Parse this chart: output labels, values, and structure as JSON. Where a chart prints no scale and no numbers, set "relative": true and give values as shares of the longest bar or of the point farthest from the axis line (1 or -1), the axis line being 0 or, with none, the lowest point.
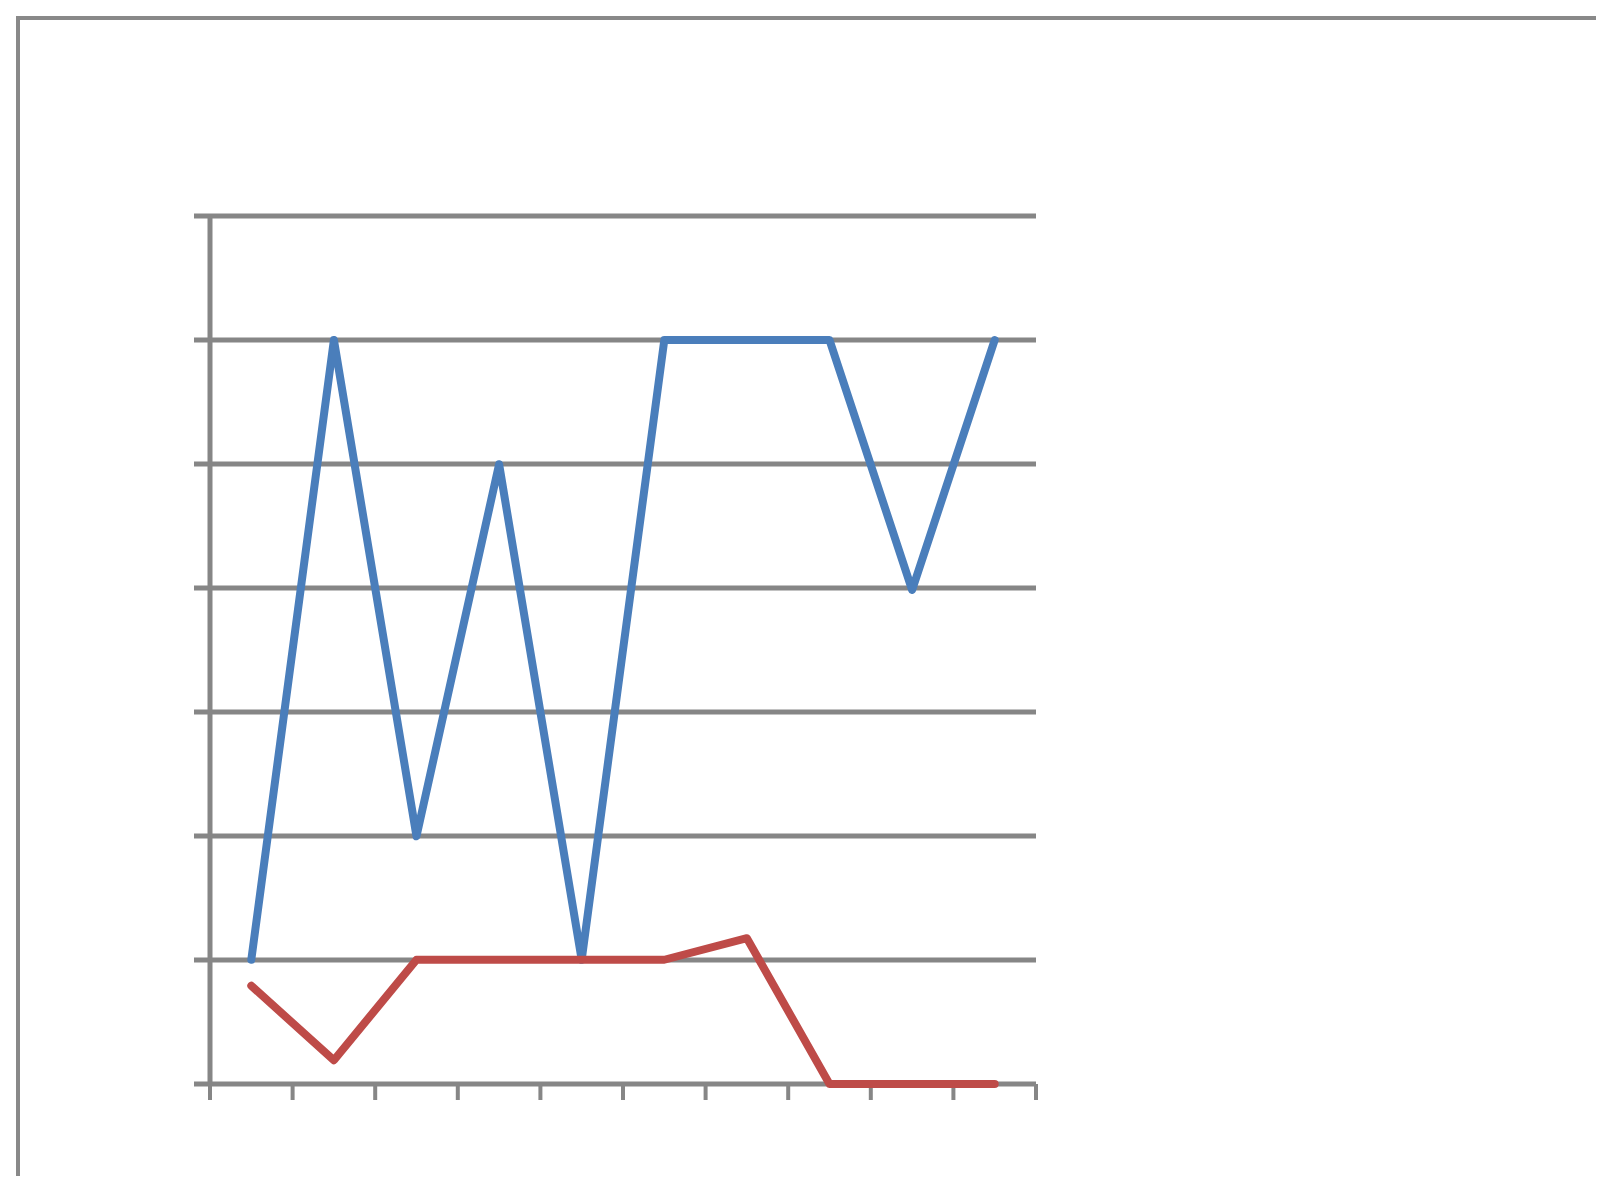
{
  "chart_data": {
    "type": "line",
    "relative": true,
    "grid": "y",
    "categories": [
      null,
      null,
      null,
      null,
      null,
      null,
      null,
      null,
      null,
      null
    ],
    "series": [
      {
        "color": "#4a7ebb",
        "values": [
          0.167,
          1,
          0.333,
          0.833,
          0.167,
          1,
          1,
          1,
          0.664,
          1
        ]
      },
      {
        "color": "#be4b48",
        "values": [
          0.132,
          0.032,
          0.167,
          0.167,
          0.167,
          0.167,
          0.196,
          0,
          0,
          0
        ]
      }
    ]
  }
}
